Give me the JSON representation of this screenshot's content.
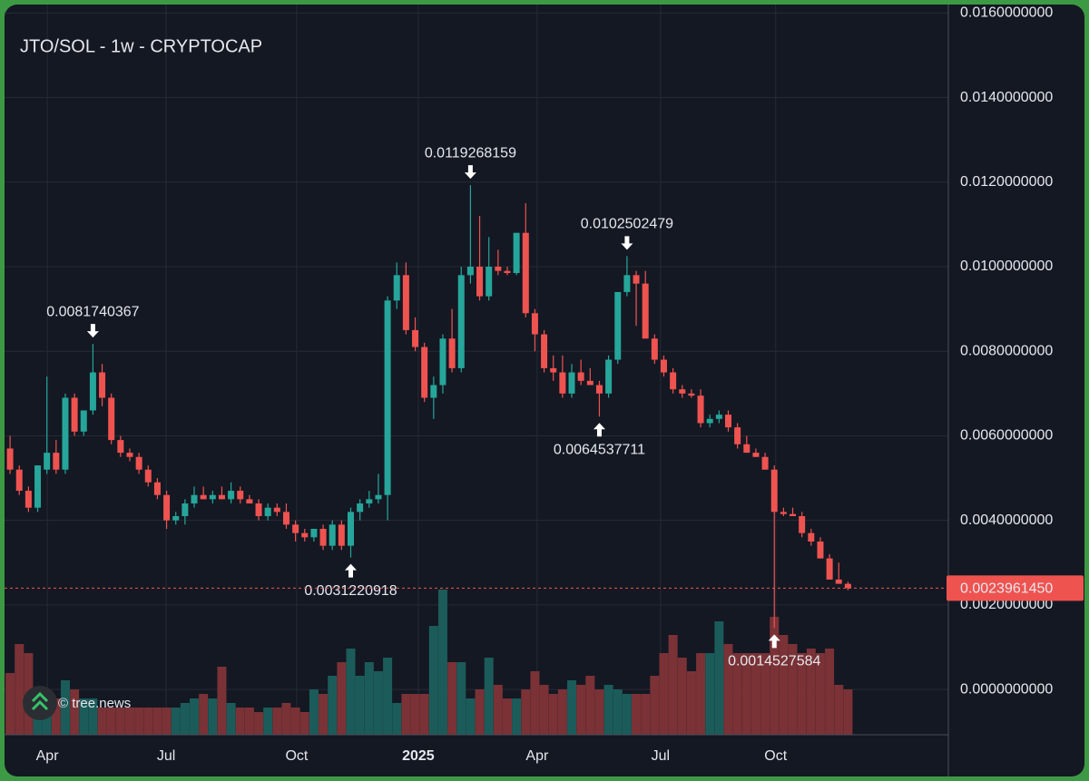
{
  "chart_data": {
    "type": "candlestick",
    "title": "JTO/SOL - 1w - CRYPTOCAP",
    "watermark": "© tree.news",
    "up_color": "#26a69a",
    "down_color": "#ef5350",
    "volume_up_color": "#1b5c5a",
    "volume_down_color": "#7a3236",
    "grid": true,
    "xlim": [
      -0.6,
      101.9
    ],
    "xticks": [
      {
        "value": 4.04,
        "label": "Apr"
      },
      {
        "value": 16.95,
        "label": "Jul"
      },
      {
        "value": 31.13,
        "label": "Oct"
      },
      {
        "value": 44.33,
        "label": "2025"
      },
      {
        "value": 57.24,
        "label": "Apr"
      },
      {
        "value": 70.64,
        "label": "Jul"
      },
      {
        "value": 83.15,
        "label": "Oct"
      }
    ],
    "ylim": [
      -0.00107,
      0.0162
    ],
    "yticks": [
      {
        "value": 0,
        "label": "0.0000000000"
      },
      {
        "value": 0.002,
        "label": "0.0020000000"
      },
      {
        "value": 0.004,
        "label": "0.0040000000"
      },
      {
        "value": 0.006,
        "label": "0.0060000000"
      },
      {
        "value": 0.008,
        "label": "0.0080000000"
      },
      {
        "value": 0.01,
        "label": "0.0100000000"
      },
      {
        "value": 0.012,
        "label": "0.0120000000"
      },
      {
        "value": 0.014,
        "label": "0.0140000000"
      },
      {
        "value": 0.016,
        "label": "0.0160000000"
      }
    ],
    "open": [
      0.0057,
      0.0052,
      0.0047,
      0.0043,
      0.0052,
      0.0056,
      0.0052,
      0.0069,
      0.0061,
      0.0066,
      0.0075,
      0.0069,
      0.0059,
      0.0056,
      0.0055,
      0.0052,
      0.0049,
      0.0046,
      0.004,
      0.0041,
      0.0044,
      0.0046,
      0.0045,
      0.0046,
      0.0045,
      0.0047,
      0.0045,
      0.0044,
      0.0041,
      0.0043,
      0.0042,
      0.0039,
      0.0037,
      0.0036,
      0.0038,
      0.0034,
      0.0039,
      0.0034,
      0.0042,
      0.0044,
      0.0045,
      0.0046,
      0.0092,
      0.0098,
      0.0085,
      0.0081,
      0.0069,
      0.0072,
      0.0083,
      0.0076,
      0.0098,
      0.01,
      0.0093,
      0.01,
      0.0099,
      0.00985,
      0.0108,
      0.0089,
      0.0084,
      0.0076,
      0.0075,
      0.007,
      0.0075,
      0.0073,
      0.0072,
      0.007,
      0.0078,
      0.0094,
      0.0098,
      0.0096,
      0.0083,
      0.0078,
      0.0075,
      0.0071,
      0.007,
      0.00695,
      0.0063,
      0.0064,
      0.0065,
      0.0062,
      0.0058,
      0.0056,
      0.0055,
      0.0052,
      0.0042,
      0.00415,
      0.0041,
      0.0037,
      0.0035,
      0.0031,
      0.0026,
      0.0025
    ],
    "high": [
      0.006,
      0.0053,
      0.0048,
      0.0053,
      0.0074,
      0.0059,
      0.007,
      0.007,
      0.0066,
      0.0081740367,
      0.0077,
      0.007,
      0.006,
      0.0057,
      0.0056,
      0.0053,
      0.005,
      0.0047,
      0.0042,
      0.0045,
      0.0048,
      0.0048,
      0.0047,
      0.0048,
      0.0049,
      0.0048,
      0.0046,
      0.0045,
      0.0044,
      0.0044,
      0.0044,
      0.004,
      0.0038,
      0.0038,
      0.0039,
      0.004,
      0.004,
      0.0043,
      0.0045,
      0.0047,
      0.0051,
      0.0093,
      0.0101,
      0.0101,
      0.0088,
      0.0082,
      0.0074,
      0.0084,
      0.009,
      0.01,
      0.0119268159,
      0.0112,
      0.0107,
      0.0104,
      0.01,
      0.0108,
      0.0115,
      0.009,
      0.0085,
      0.0079,
      0.0079,
      0.0077,
      0.0078,
      0.0076,
      0.0073,
      0.0079,
      0.0094,
      0.0102502479,
      0.0099,
      0.0099,
      0.0084,
      0.0079,
      0.0076,
      0.0072,
      0.0071,
      0.0071,
      0.0065,
      0.0066,
      0.0066,
      0.0063,
      0.006,
      0.0057,
      0.0056,
      0.0053,
      0.0043,
      0.0043,
      0.0042,
      0.0038,
      0.0036,
      0.0032,
      0.003,
      0.00255
    ],
    "low": [
      0.0051,
      0.0046,
      0.0042,
      0.0042,
      0.0051,
      0.0051,
      0.0051,
      0.006,
      0.006,
      0.0065,
      0.0067,
      0.0058,
      0.0055,
      0.0054,
      0.0051,
      0.0048,
      0.0045,
      0.0038,
      0.0039,
      0.0039,
      0.0043,
      0.0045,
      0.0044,
      0.0045,
      0.0044,
      0.0044,
      0.0044,
      0.004,
      0.004,
      0.0041,
      0.0038,
      0.0035,
      0.0035,
      0.0035,
      0.0033,
      0.0033,
      0.0033,
      0.0031220918,
      0.004,
      0.0043,
      0.0044,
      0.004,
      0.009,
      0.0084,
      0.008,
      0.0068,
      0.0064,
      0.007,
      0.0075,
      0.0075,
      0.0096,
      0.0092,
      0.0092,
      0.0098,
      0.0098,
      0.0098,
      0.0088,
      0.008,
      0.0075,
      0.0073,
      0.0069,
      0.0069,
      0.0072,
      0.0072,
      0.0064537711,
      0.0069,
      0.0077,
      0.0093,
      0.0086,
      0.0083,
      0.0077,
      0.0074,
      0.007,
      0.0069,
      0.0069,
      0.0062,
      0.0062,
      0.0063,
      0.0061,
      0.0057,
      0.0056,
      0.0055,
      0.0052,
      0.0014527584,
      0.0041,
      0.0041,
      0.0036,
      0.0034,
      0.0031,
      0.0026,
      0.0025,
      0.00235
    ],
    "close": [
      0.0052,
      0.0047,
      0.0043,
      0.0053,
      0.0056,
      0.0052,
      0.0069,
      0.0061,
      0.0066,
      0.0075,
      0.0069,
      0.0059,
      0.0056,
      0.0055,
      0.0052,
      0.0049,
      0.0046,
      0.004,
      0.0041,
      0.0044,
      0.0046,
      0.0045,
      0.0046,
      0.0045,
      0.0047,
      0.0045,
      0.0044,
      0.0041,
      0.0043,
      0.0042,
      0.0039,
      0.0037,
      0.0036,
      0.0038,
      0.0034,
      0.0039,
      0.0034,
      0.0042,
      0.0044,
      0.0045,
      0.0046,
      0.0092,
      0.0098,
      0.0085,
      0.0081,
      0.0069,
      0.0072,
      0.0083,
      0.0076,
      0.0098,
      0.01,
      0.0093,
      0.01,
      0.0099,
      0.00985,
      0.0108,
      0.0089,
      0.0084,
      0.0076,
      0.0075,
      0.007,
      0.0075,
      0.0073,
      0.0072,
      0.007,
      0.0078,
      0.0094,
      0.0098,
      0.0096,
      0.0083,
      0.0078,
      0.0075,
      0.0071,
      0.007,
      0.00695,
      0.0063,
      0.0064,
      0.0065,
      0.0062,
      0.0058,
      0.0056,
      0.0055,
      0.0052,
      0.0042,
      0.00415,
      0.0041,
      0.0037,
      0.0035,
      0.0031,
      0.0026,
      0.0025,
      0.002396145
    ],
    "volume": [
      68,
      100,
      90,
      40,
      30,
      40,
      60,
      50,
      40,
      40,
      30,
      30,
      30,
      30,
      30,
      30,
      30,
      30,
      30,
      35,
      40,
      45,
      40,
      75,
      35,
      30,
      30,
      25,
      30,
      30,
      35,
      30,
      25,
      50,
      45,
      65,
      80,
      95,
      65,
      80,
      70,
      85,
      35,
      45,
      45,
      45,
      120,
      160,
      80,
      80,
      40,
      50,
      85,
      55,
      40,
      40,
      50,
      70,
      55,
      45,
      50,
      60,
      55,
      65,
      50,
      55,
      50,
      45,
      45,
      45,
      65,
      90,
      110,
      85,
      70,
      90,
      90,
      125,
      100,
      90,
      90,
      90,
      90,
      130,
      110,
      100,
      90,
      95,
      90,
      95,
      55,
      50
    ],
    "annotations": [
      0.0081740367,
      0.0031220918,
      0.0119268159,
      0.0064537711,
      0.0102502479,
      0.0014527584
    ],
    "last_price": {
      "value": 0.002396145,
      "label": "0.0023961450"
    }
  }
}
